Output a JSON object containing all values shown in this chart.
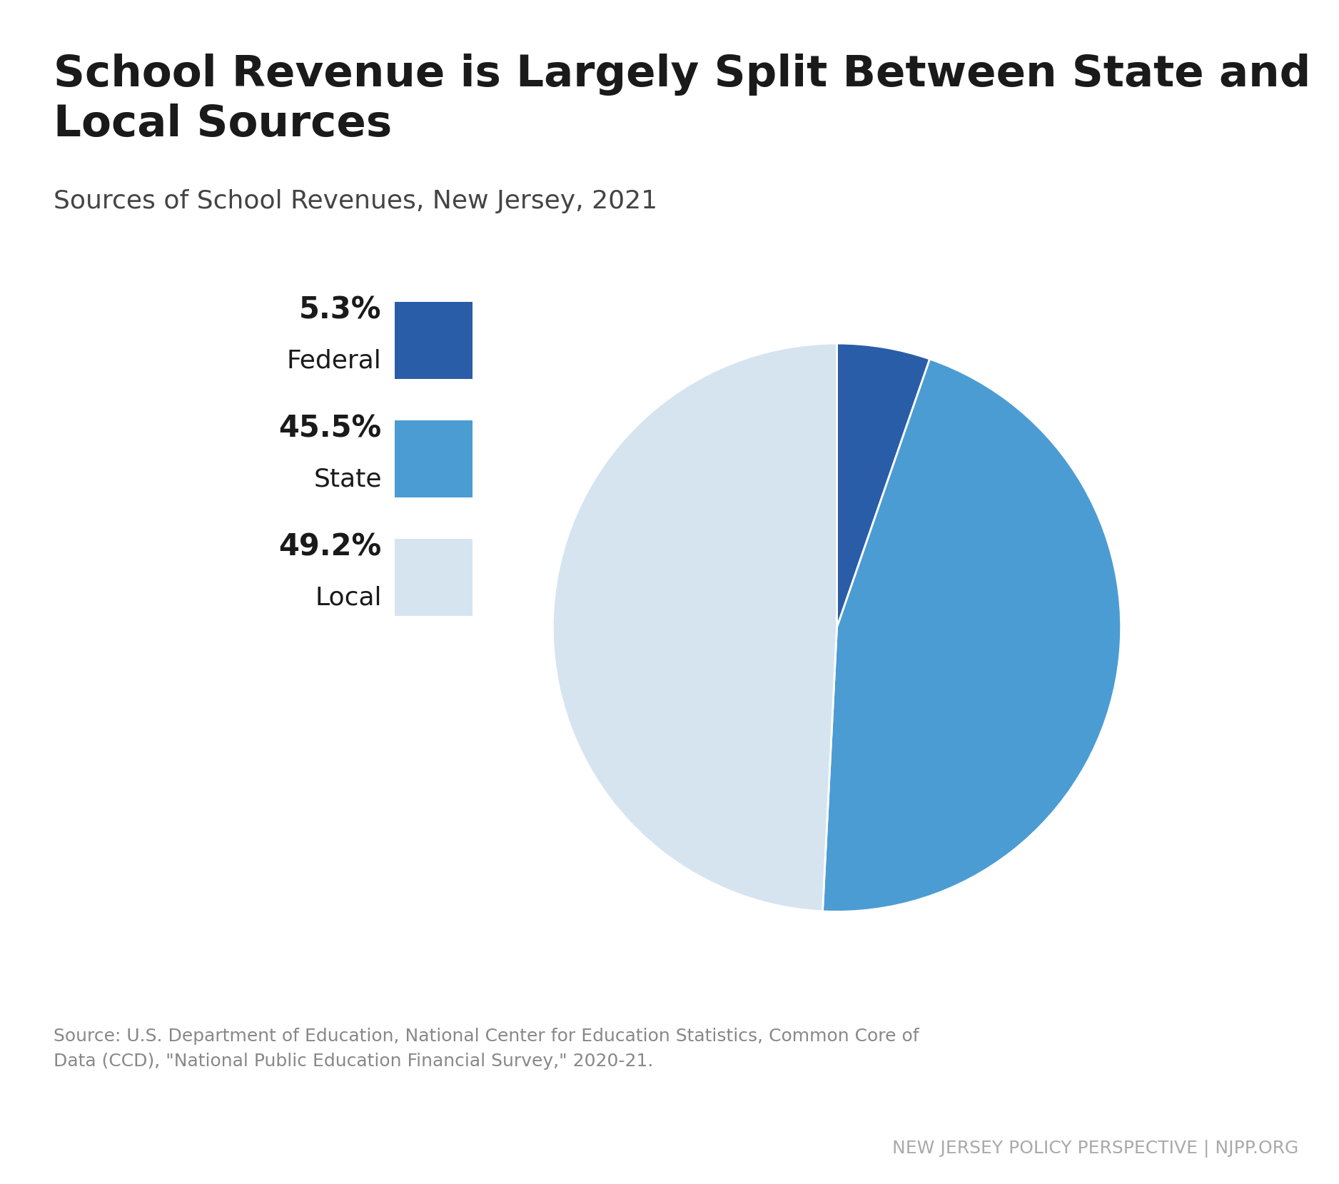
{
  "title": "School Revenue is Largely Split Between State and\nLocal Sources",
  "subtitle": "Sources of School Revenues, New Jersey, 2021",
  "values": [
    5.3,
    45.5,
    49.2
  ],
  "labels": [
    "Federal",
    "State",
    "Local"
  ],
  "percentages": [
    "5.3%",
    "45.5%",
    "49.2%"
  ],
  "colors": [
    "#2a5da8",
    "#4b9cd3",
    "#d6e4f0"
  ],
  "source_text": "Source: U.S. Department of Education, National Center for Education Statistics, Common Core of\nData (CCD), \"National Public Education Financial Survey,\" 2020-21.",
  "footer_text": "NEW JERSEY POLICY PERSPECTIVE | NJPP.ORG",
  "background_color": "#ffffff",
  "title_color": "#1a1a1a",
  "subtitle_color": "#444444",
  "source_color": "#888888",
  "footer_color": "#aaaaaa",
  "top_bar_color": "#888888",
  "bottom_bar_color": "#666666"
}
